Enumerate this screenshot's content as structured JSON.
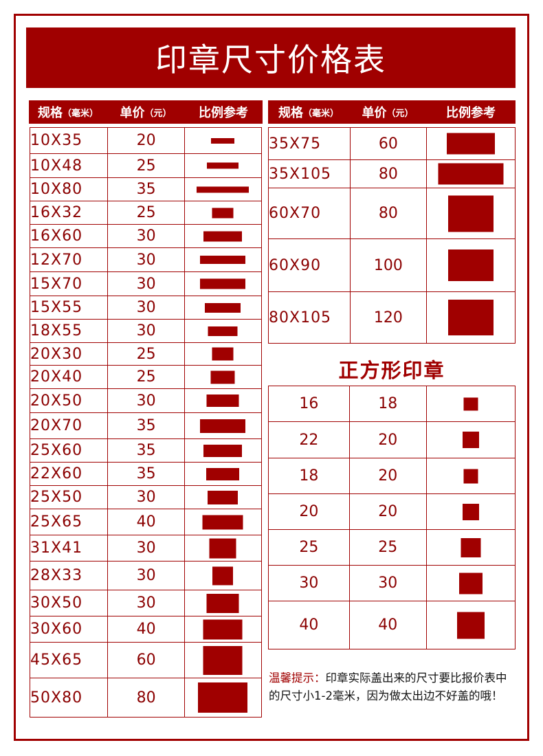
{
  "title": "印章尺寸价格表",
  "headers": {
    "spec": "规格",
    "spec_unit": "（毫米）",
    "price": "单价",
    "price_unit": "（元）",
    "ratio": "比例参考"
  },
  "left_table": [
    {
      "spec": "10X35",
      "price": "20"
    },
    {
      "spec": "10X48",
      "price": "25"
    },
    {
      "spec": "10X80",
      "price": "35"
    },
    {
      "spec": "16X32",
      "price": "25"
    },
    {
      "spec": "16X60",
      "price": "30"
    },
    {
      "spec": "12X70",
      "price": "30"
    },
    {
      "spec": "15X70",
      "price": "30"
    },
    {
      "spec": "15X55",
      "price": "30"
    },
    {
      "spec": "18X55",
      "price": "30"
    },
    {
      "spec": "20X30",
      "price": "25"
    },
    {
      "spec": "20X40",
      "price": "25"
    },
    {
      "spec": "20X50",
      "price": "30"
    },
    {
      "spec": "20X70",
      "price": "35"
    },
    {
      "spec": "25X60",
      "price": "35"
    },
    {
      "spec": "22X60",
      "price": "35"
    },
    {
      "spec": "25X50",
      "price": "30"
    },
    {
      "spec": "25X65",
      "price": "40"
    },
    {
      "spec": "31X41",
      "price": "30"
    },
    {
      "spec": "28X33",
      "price": "30"
    },
    {
      "spec": "30X50",
      "price": "30"
    },
    {
      "spec": "30X60",
      "price": "40"
    },
    {
      "spec": "45X65",
      "price": "60"
    },
    {
      "spec": "50X80",
      "price": "80"
    }
  ],
  "right_table": [
    {
      "spec": "35X75",
      "price": "60"
    },
    {
      "spec": "35X105",
      "price": "80"
    },
    {
      "spec": "60X70",
      "price": "80"
    },
    {
      "spec": "60X90",
      "price": "100"
    },
    {
      "spec": "80X105",
      "price": "120"
    }
  ],
  "square_title": "正方形印章",
  "square_table": [
    {
      "size": "16",
      "price": "18"
    },
    {
      "size": "22",
      "price": "20"
    },
    {
      "size": "18",
      "price": "20"
    },
    {
      "size": "20",
      "price": "20"
    },
    {
      "size": "25",
      "price": "25"
    },
    {
      "size": "30",
      "price": "30"
    },
    {
      "size": "40",
      "price": "40"
    }
  ],
  "note": {
    "lead": "温馨提示：",
    "text": "印章实际盖出来的尺寸要比报价表中的尺寸小1-2毫米，因为做太出边不好盖的哦！"
  },
  "colors": {
    "accent": "#a00000",
    "text": "#8b0000"
  }
}
